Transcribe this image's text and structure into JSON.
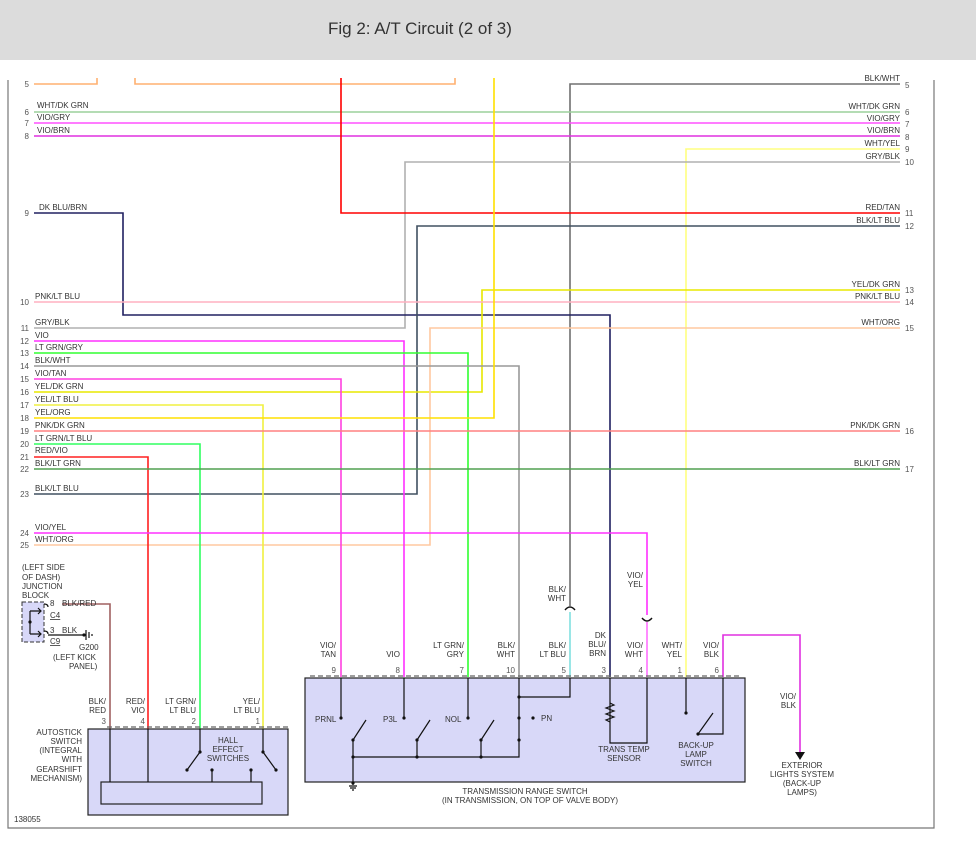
{
  "header": {
    "title": "Fig 2: A/T Circuit (2 of 3)"
  },
  "left_wires": [
    {
      "num": "5",
      "label": ""
    },
    {
      "num": "6",
      "label": "WHT/DK GRN"
    },
    {
      "num": "7",
      "label": "VIO/GRY"
    },
    {
      "num": "8",
      "label": "VIO/BRN"
    },
    {
      "num": "9",
      "label": "DK BLU/BRN"
    },
    {
      "num": "10",
      "label": "PNK/LT BLU"
    },
    {
      "num": "11",
      "label": "GRY/BLK"
    },
    {
      "num": "12",
      "label": "VIO"
    },
    {
      "num": "13",
      "label": "LT GRN/GRY"
    },
    {
      "num": "14",
      "label": "BLK/WHT"
    },
    {
      "num": "15",
      "label": "VIO/TAN"
    },
    {
      "num": "16",
      "label": "YEL/DK GRN"
    },
    {
      "num": "17",
      "label": "YEL/LT BLU"
    },
    {
      "num": "18",
      "label": "YEL/ORG"
    },
    {
      "num": "19",
      "label": "PNK/DK GRN"
    },
    {
      "num": "20",
      "label": "LT GRN/LT BLU"
    },
    {
      "num": "21",
      "label": "RED/VIO"
    },
    {
      "num": "22",
      "label": "BLK/LT GRN"
    },
    {
      "num": "23",
      "label": "BLK/LT BLU"
    },
    {
      "num": "24",
      "label": "VIO/YEL"
    },
    {
      "num": "25",
      "label": "WHT/ORG"
    }
  ],
  "right_wires": [
    {
      "num": "5",
      "label": "BLK/WHT"
    },
    {
      "num": "6",
      "label": "WHT/DK GRN"
    },
    {
      "num": "7",
      "label": "VIO/GRY"
    },
    {
      "num": "8",
      "label": "VIO/BRN"
    },
    {
      "num": "9",
      "label": "WHT/YEL"
    },
    {
      "num": "10",
      "label": "GRY/BLK"
    },
    {
      "num": "11",
      "label": "RED/TAN"
    },
    {
      "num": "12",
      "label": "BLK/LT BLU"
    },
    {
      "num": "13",
      "label": "YEL/DK GRN"
    },
    {
      "num": "14",
      "label": "PNK/LT BLU"
    },
    {
      "num": "15",
      "label": "WHT/ORG"
    },
    {
      "num": "16",
      "label": "PNK/DK GRN"
    },
    {
      "num": "17",
      "label": "BLK/LT GRN"
    }
  ],
  "junction_block": {
    "label": [
      "(LEFT SIDE",
      "OF DASH)",
      "JUNCTION",
      "BLOCK"
    ],
    "pin_a": "8",
    "wire_a": "BLK/RED",
    "conn_a": "C4",
    "pin_b": "3",
    "wire_b": "BLK",
    "conn_b": "C9",
    "ground": "G200",
    "ground_loc": [
      "(LEFT KICK",
      "PANEL)"
    ]
  },
  "autostick": {
    "label": [
      "AUTOSTICK",
      "SWITCH",
      "(INTEGRAL",
      "WITH",
      "GEARSHIFT",
      "MECHANISM)"
    ],
    "inner_label": [
      "HALL",
      "EFFECT",
      "SWITCHES"
    ],
    "pins": [
      {
        "num": "3",
        "wire": [
          "BLK/",
          "RED"
        ]
      },
      {
        "num": "4",
        "wire": [
          "RED/",
          "VIO"
        ]
      },
      {
        "num": "2",
        "wire": [
          "LT GRN/",
          "LT BLU"
        ]
      },
      {
        "num": "1",
        "wire": [
          "YEL/",
          "LT BLU"
        ]
      }
    ]
  },
  "range_switch": {
    "label": "TRANSMISSION RANGE SWITCH",
    "sublabel": "(IN TRANSMISSION, ON TOP OF VALVE BODY)",
    "pins": [
      {
        "num": "9",
        "wire": [
          "VIO/",
          "TAN"
        ]
      },
      {
        "num": "8",
        "wire": [
          "",
          "VIO"
        ]
      },
      {
        "num": "7",
        "wire": [
          "LT GRN/",
          "GRY"
        ]
      },
      {
        "num": "10",
        "wire": [
          "BLK/",
          "WHT"
        ]
      },
      {
        "num": "5",
        "wire": [
          "BLK/",
          "LT BLU"
        ]
      },
      {
        "num": "3",
        "wire": [
          "DK",
          "BLU/",
          "BRN"
        ]
      },
      {
        "num": "4",
        "wire": [
          "VIO/",
          "WHT"
        ]
      },
      {
        "num": "1",
        "wire": [
          "WHT/",
          "YEL"
        ]
      },
      {
        "num": "6",
        "wire": [
          "VIO/",
          "BLK"
        ]
      }
    ],
    "internal": {
      "prnl": "PRNL",
      "p3l": "P3L",
      "nol": "NOL",
      "pn": "PN",
      "temp_sensor": [
        "TRANS TEMP",
        "SENSOR"
      ],
      "backup_switch": [
        "BACK-UP",
        "LAMP",
        "SWITCH"
      ]
    },
    "inline_labels": {
      "blk_wht": [
        "BLK/",
        "WHT"
      ],
      "vio_yel": [
        "VIO/",
        "YEL"
      ]
    }
  },
  "exterior": {
    "wire": [
      "VIO/",
      "BLK"
    ],
    "label": [
      "EXTERIOR",
      "LIGHTS SYSTEM",
      "(BACK-UP",
      "LAMPS)"
    ]
  },
  "figure_id": "138055",
  "colors": {
    "box_fill": "#d8d8f8",
    "header_bg": "#dcdcdc"
  }
}
